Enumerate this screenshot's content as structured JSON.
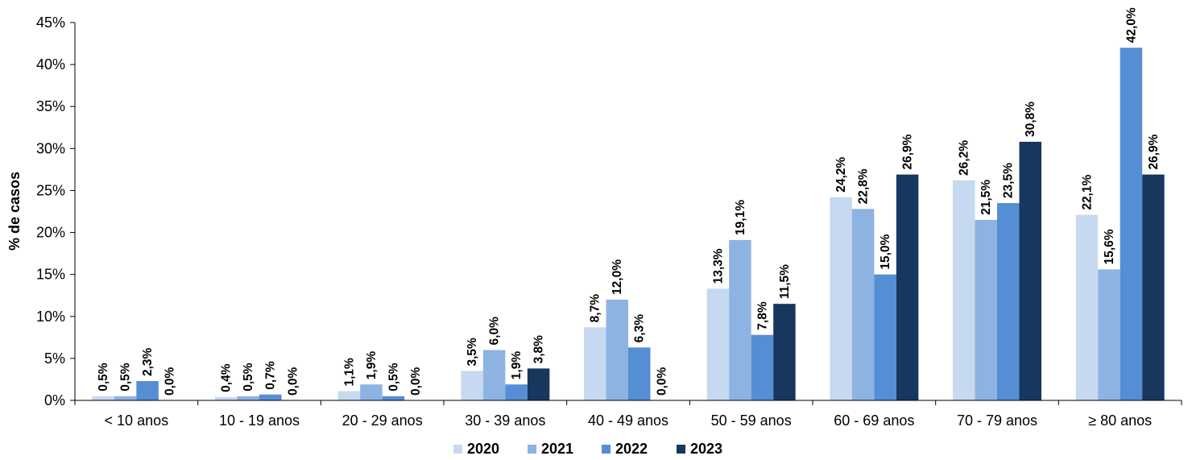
{
  "chart_data": {
    "type": "bar",
    "title": "",
    "xlabel": "",
    "ylabel": "% de casos",
    "ylim": [
      0,
      45
    ],
    "y_ticks": [
      "0%",
      "5%",
      "10%",
      "15%",
      "20%",
      "25%",
      "30%",
      "35%",
      "40%",
      "45%"
    ],
    "grid": false,
    "legend_position": "bottom",
    "categories": [
      "< 10 anos",
      "10 - 19 anos",
      "20 - 29 anos",
      "30 - 39 anos",
      "40 - 49 anos",
      "50 - 59 anos",
      "60 - 69 anos",
      "70 - 79 anos",
      "≥ 80 anos"
    ],
    "series": [
      {
        "name": "2020",
        "color": "#c6d9f0",
        "values": [
          0.5,
          0.4,
          1.1,
          3.5,
          8.7,
          13.3,
          24.2,
          26.2,
          22.1
        ],
        "labels": [
          "0,5%",
          "0,4%",
          "1,1%",
          "3,5%",
          "8,7%",
          "13,3%",
          "24,2%",
          "26,2%",
          "22,1%"
        ]
      },
      {
        "name": "2021",
        "color": "#8db3e2",
        "values": [
          0.5,
          0.5,
          1.9,
          6.0,
          12.0,
          19.1,
          22.8,
          21.5,
          15.6
        ],
        "labels": [
          "0,5%",
          "0,5%",
          "1,9%",
          "6,0%",
          "12,0%",
          "19,1%",
          "22,8%",
          "21,5%",
          "15,6%"
        ]
      },
      {
        "name": "2022",
        "color": "#558ed5",
        "values": [
          2.3,
          0.7,
          0.5,
          1.9,
          6.3,
          7.8,
          15.0,
          23.5,
          42.0
        ],
        "labels": [
          "2,3%",
          "0,7%",
          "0,5%",
          "1,9%",
          "6,3%",
          "7,8%",
          "15,0%",
          "23,5%",
          "42,0%"
        ]
      },
      {
        "name": "2023",
        "color": "#17375e",
        "values": [
          0.0,
          0.0,
          0.0,
          3.8,
          0.0,
          11.5,
          26.9,
          30.8,
          26.9
        ],
        "labels": [
          "0,0%",
          "0,0%",
          "0,0%",
          "3,8%",
          "0,0%",
          "11,5%",
          "26,9%",
          "30,8%",
          "26,9%"
        ]
      }
    ]
  }
}
